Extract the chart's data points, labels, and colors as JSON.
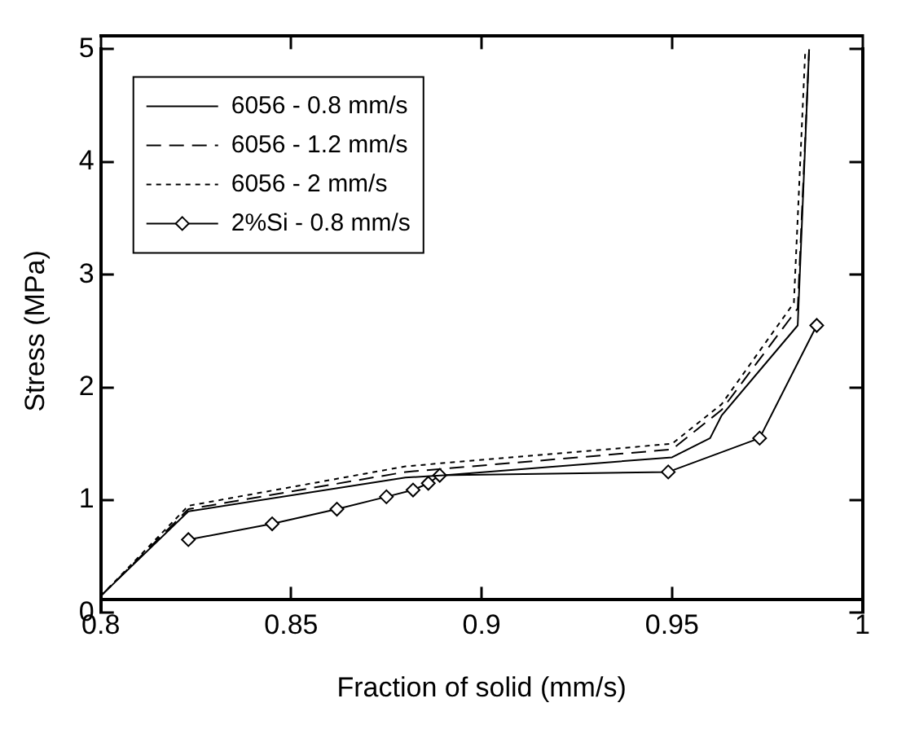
{
  "chart_data": {
    "type": "line",
    "xlabel": "Fraction of solid (mm/s)",
    "ylabel": "Stress (MPa)",
    "xlim": [
      0.8,
      1
    ],
    "xticks": [
      0.8,
      0.85,
      0.9,
      0.95,
      1
    ],
    "ylim": [
      0,
      5
    ],
    "yticks": [
      0,
      1,
      2,
      3,
      4,
      5
    ],
    "grid": false,
    "legend": "top left",
    "series": [
      {
        "name": "6056 - 0.8 mm/s",
        "color": "#000000",
        "line_style": "solid",
        "marker": "none",
        "x": [
          0.8,
          0.823,
          0.88,
          0.89,
          0.95,
          0.96,
          0.963,
          0.983,
          0.986
        ],
        "values": [
          0.15,
          0.9,
          1.2,
          1.22,
          1.38,
          1.55,
          1.75,
          2.55,
          5
        ]
      },
      {
        "name": "6056 - 1.2 mm/s",
        "color": "#000000",
        "line_style": "dashed",
        "marker": "none",
        "x": [
          0.8,
          0.823,
          0.88,
          0.95,
          0.963,
          0.983,
          0.986
        ],
        "values": [
          0.15,
          0.92,
          1.25,
          1.45,
          1.8,
          2.7,
          5
        ]
      },
      {
        "name": "6056 - 2 mm/s",
        "color": "#000000",
        "line_style": "dotted",
        "marker": "none",
        "x": [
          0.8,
          0.823,
          0.88,
          0.95,
          0.963,
          0.982,
          0.985
        ],
        "values": [
          0.15,
          0.95,
          1.3,
          1.5,
          1.85,
          2.75,
          5
        ]
      },
      {
        "name": "2%Si - 0.8 mm/s",
        "color": "#000000",
        "line_style": "solid",
        "marker": "diamond",
        "x": [
          0.823,
          0.845,
          0.862,
          0.875,
          0.882,
          0.886,
          0.889,
          0.949,
          0.973,
          0.988
        ],
        "values": [
          0.65,
          0.79,
          0.92,
          1.03,
          1.09,
          1.15,
          1.22,
          1.25,
          1.55,
          2.55
        ]
      }
    ]
  }
}
